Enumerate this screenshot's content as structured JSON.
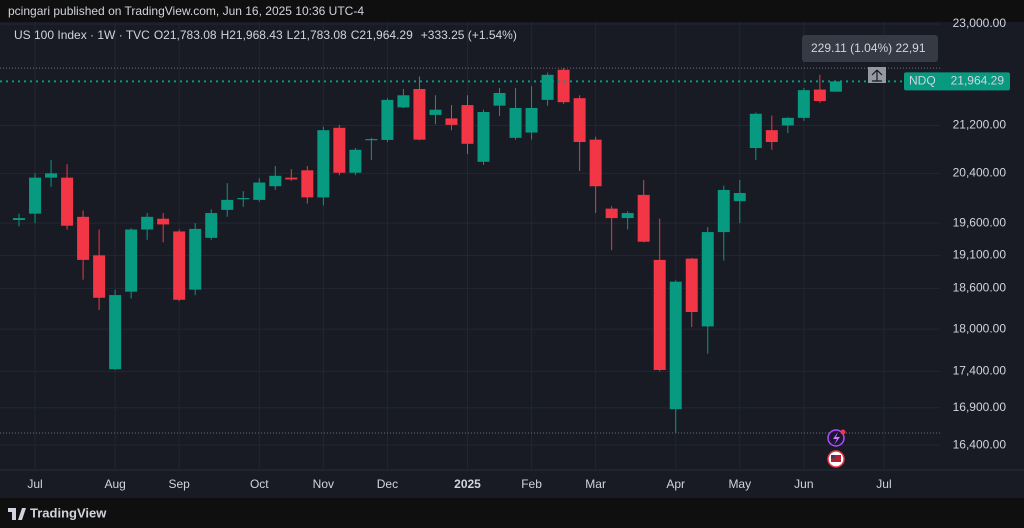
{
  "header": {
    "byline": "pcingari published on TradingView.com, Jun 16, 2025 10:36 UTC-4"
  },
  "legend": {
    "symbol": "US 100 Index · 1W · TVC",
    "open_label": "O",
    "open": "21,783.08",
    "high_label": "H",
    "high": "21,968.43",
    "low_label": "L",
    "low": "21,783.08",
    "close_label": "C",
    "close": "21,964.29",
    "change": "+333.25 (+1.54%)"
  },
  "footer": {
    "brand": "TradingView"
  },
  "chart_data": {
    "type": "candlestick",
    "log_scale": true,
    "grid": true,
    "up_color": "#089981",
    "down_color": "#f23645",
    "open": [
      19650,
      19750,
      20330,
      20330,
      19700,
      19100,
      17430,
      18550,
      19500,
      19670,
      19470,
      18580,
      19370,
      19810,
      19980,
      19970,
      20190,
      20330,
      20450,
      20010,
      21160,
      20410,
      20950,
      20955,
      21510,
      21830,
      21380,
      21320,
      21550,
      20590,
      21540,
      20990,
      21080,
      21640,
      22170,
      21670,
      20960,
      19830,
      19680,
      20050,
      19030,
      16880,
      19050,
      18040,
      19460,
      19950,
      20820,
      21120,
      21200,
      21330,
      21820,
      21783.08
    ],
    "high": [
      19750,
      20400,
      20620,
      20550,
      19800,
      19500,
      18580,
      19520,
      19760,
      19760,
      19500,
      19600,
      19820,
      20240,
      20110,
      20320,
      20520,
      20470,
      20520,
      21180,
      21210,
      20820,
      20990,
      21670,
      21830,
      22050,
      21720,
      21550,
      21720,
      21470,
      21850,
      21850,
      21880,
      22120,
      22200,
      21720,
      21010,
      19870,
      19790,
      20290,
      19670,
      18720,
      19060,
      19540,
      20200,
      20290,
      21420,
      21370,
      21340,
      21850,
      22080,
      21968.43
    ],
    "low": [
      19550,
      19600,
      20180,
      19500,
      18730,
      18280,
      17420,
      18450,
      19340,
      19300,
      18410,
      18500,
      19340,
      19700,
      19860,
      19940,
      20130,
      20280,
      19910,
      19880,
      20370,
      20370,
      20620,
      20920,
      21500,
      20950,
      21220,
      21120,
      20720,
      20540,
      21360,
      20960,
      20960,
      21540,
      21570,
      20440,
      19760,
      19180,
      19500,
      19300,
      17400,
      16560,
      18030,
      17650,
      19020,
      19600,
      20620,
      20790,
      21070,
      21280,
      21590,
      21783.08
    ],
    "close": [
      19680,
      20330,
      20400,
      19560,
      19030,
      18460,
      18500,
      19500,
      19700,
      19580,
      18430,
      19510,
      19760,
      19970,
      20000,
      20250,
      20360,
      20300,
      20010,
      21120,
      20410,
      20790,
      20970,
      21640,
      21720,
      20960,
      21470,
      21210,
      20890,
      21430,
      21760,
      21500,
      21500,
      22080,
      21600,
      20920,
      20190,
      19680,
      19760,
      19310,
      17420,
      18700,
      18250,
      19460,
      20130,
      20080,
      21400,
      20920,
      21330,
      21810,
      21620,
      21964.29
    ],
    "xlim": [
      -1.1875,
      57.5
    ],
    "xticks": [
      {
        "value": 1,
        "label": "Jul"
      },
      {
        "value": 6,
        "label": "Aug"
      },
      {
        "value": 10,
        "label": "Sep"
      },
      {
        "value": 15,
        "label": "Oct"
      },
      {
        "value": 19,
        "label": "Nov"
      },
      {
        "value": 23,
        "label": "Dec"
      },
      {
        "value": 28,
        "label": "2025"
      },
      {
        "value": 32,
        "label": "Feb"
      },
      {
        "value": 36,
        "label": "Mar"
      },
      {
        "value": 41,
        "label": "Apr"
      },
      {
        "value": 45,
        "label": "May"
      },
      {
        "value": 49,
        "label": "Jun"
      },
      {
        "value": 54,
        "label": "Jul"
      }
    ],
    "ylim": [
      16075,
      23037
    ],
    "yticks": [
      {
        "value": 23000,
        "label": "23,000.00"
      },
      {
        "value": 21200,
        "label": "21,200.00"
      },
      {
        "value": 20400,
        "label": "20,400.00"
      },
      {
        "value": 19600,
        "label": "19,600.00"
      },
      {
        "value": 19100,
        "label": "19,100.00"
      },
      {
        "value": 18600,
        "label": "18,600.00"
      },
      {
        "value": 18000,
        "label": "18,000.00"
      },
      {
        "value": 17400,
        "label": "17,400.00"
      },
      {
        "value": 16900,
        "label": "16,900.00"
      },
      {
        "value": 16400,
        "label": "16,400.00"
      }
    ],
    "hlines": [
      22200,
      16560
    ],
    "price_label": {
      "symbol": "NDQ",
      "text": "21,964.29"
    },
    "tooltip": "229.11 (1.04%) 22,91"
  }
}
